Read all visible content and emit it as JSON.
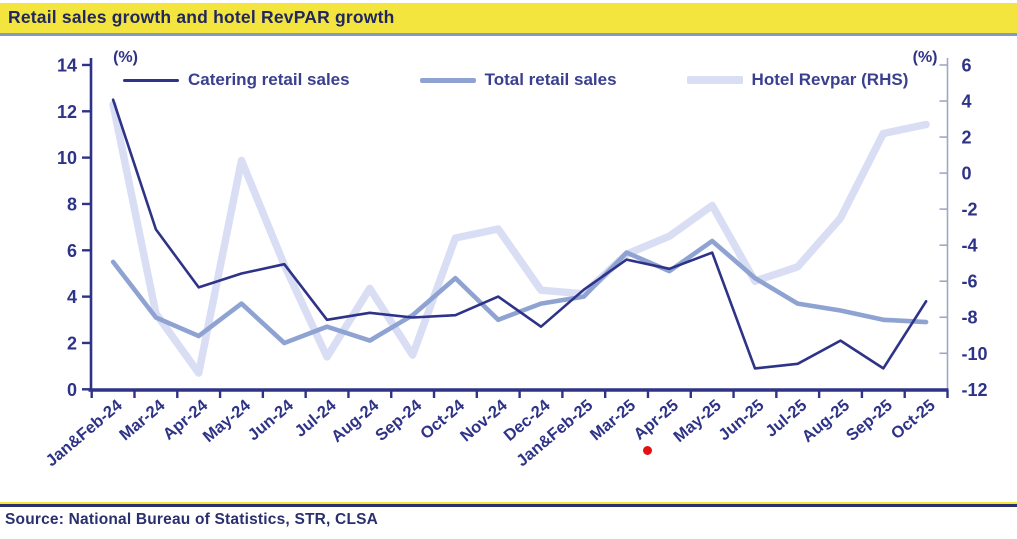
{
  "title": "Retail sales growth and hotel RevPAR growth",
  "source": "Source: National Bureau of Statistics, STR, CLSA",
  "annotations": {
    "red_dot_near": "Apr-25"
  },
  "colors": {
    "navy_line": "#2e3387",
    "total_line": "#8fa3d3",
    "hotel_line": "#d9def4",
    "title_highlight": "#f3e53e",
    "title_underline": "#8099cb",
    "right_axis_line": "#a0a8c8",
    "red_dot": "#e41111"
  },
  "chart_data": {
    "type": "line",
    "title": "Retail sales growth and hotel RevPAR growth",
    "grid": false,
    "legend_position": "top",
    "categories": [
      "Jan&Feb-24",
      "Mar-24",
      "Apr-24",
      "May-24",
      "Jun-24",
      "Jul-24",
      "Aug-24",
      "Sep-24",
      "Oct-24",
      "Nov-24",
      "Dec-24",
      "Jan&Feb-25",
      "Mar-25",
      "Apr-25",
      "May-25",
      "Jun-25",
      "Jul-25",
      "Aug-25",
      "Sep-25",
      "Oct-25"
    ],
    "left_axis": {
      "label": "(%)",
      "min": 0,
      "max": 14,
      "ticks": [
        14,
        12,
        10,
        8,
        6,
        4,
        2,
        0
      ]
    },
    "right_axis": {
      "label": "(%)",
      "min": -12,
      "max": 6,
      "ticks": [
        6,
        4,
        2,
        0,
        -2,
        -4,
        -6,
        -8,
        -10,
        -12
      ]
    },
    "series": [
      {
        "name": "Catering retail sales",
        "axis": "left",
        "color": "#2e3387",
        "width": 2.6,
        "values": [
          12.5,
          6.9,
          4.4,
          5.0,
          5.4,
          3.0,
          3.3,
          3.1,
          3.2,
          4.0,
          2.7,
          4.3,
          5.6,
          5.2,
          5.9,
          0.9,
          1.1,
          2.1,
          0.9,
          3.8
        ]
      },
      {
        "name": "Total retail sales",
        "axis": "left",
        "color": "#8fa3d3",
        "width": 4.6,
        "values": [
          5.5,
          3.1,
          2.3,
          3.7,
          2.0,
          2.7,
          2.1,
          3.2,
          4.8,
          3.0,
          3.7,
          4.0,
          5.9,
          5.1,
          6.4,
          4.8,
          3.7,
          3.4,
          3.0,
          2.9
        ]
      },
      {
        "name": "Hotel Revpar (RHS)",
        "axis": "right",
        "color": "#d9def4",
        "width": 7.5,
        "values": [
          3.8,
          -7.8,
          -11.1,
          0.7,
          -5.1,
          -10.2,
          -6.4,
          -10.1,
          -3.6,
          -3.1,
          -6.5,
          -6.7,
          -4.5,
          -3.5,
          -1.8,
          -6.0,
          -5.2,
          -2.5,
          2.2,
          2.7
        ]
      }
    ]
  }
}
